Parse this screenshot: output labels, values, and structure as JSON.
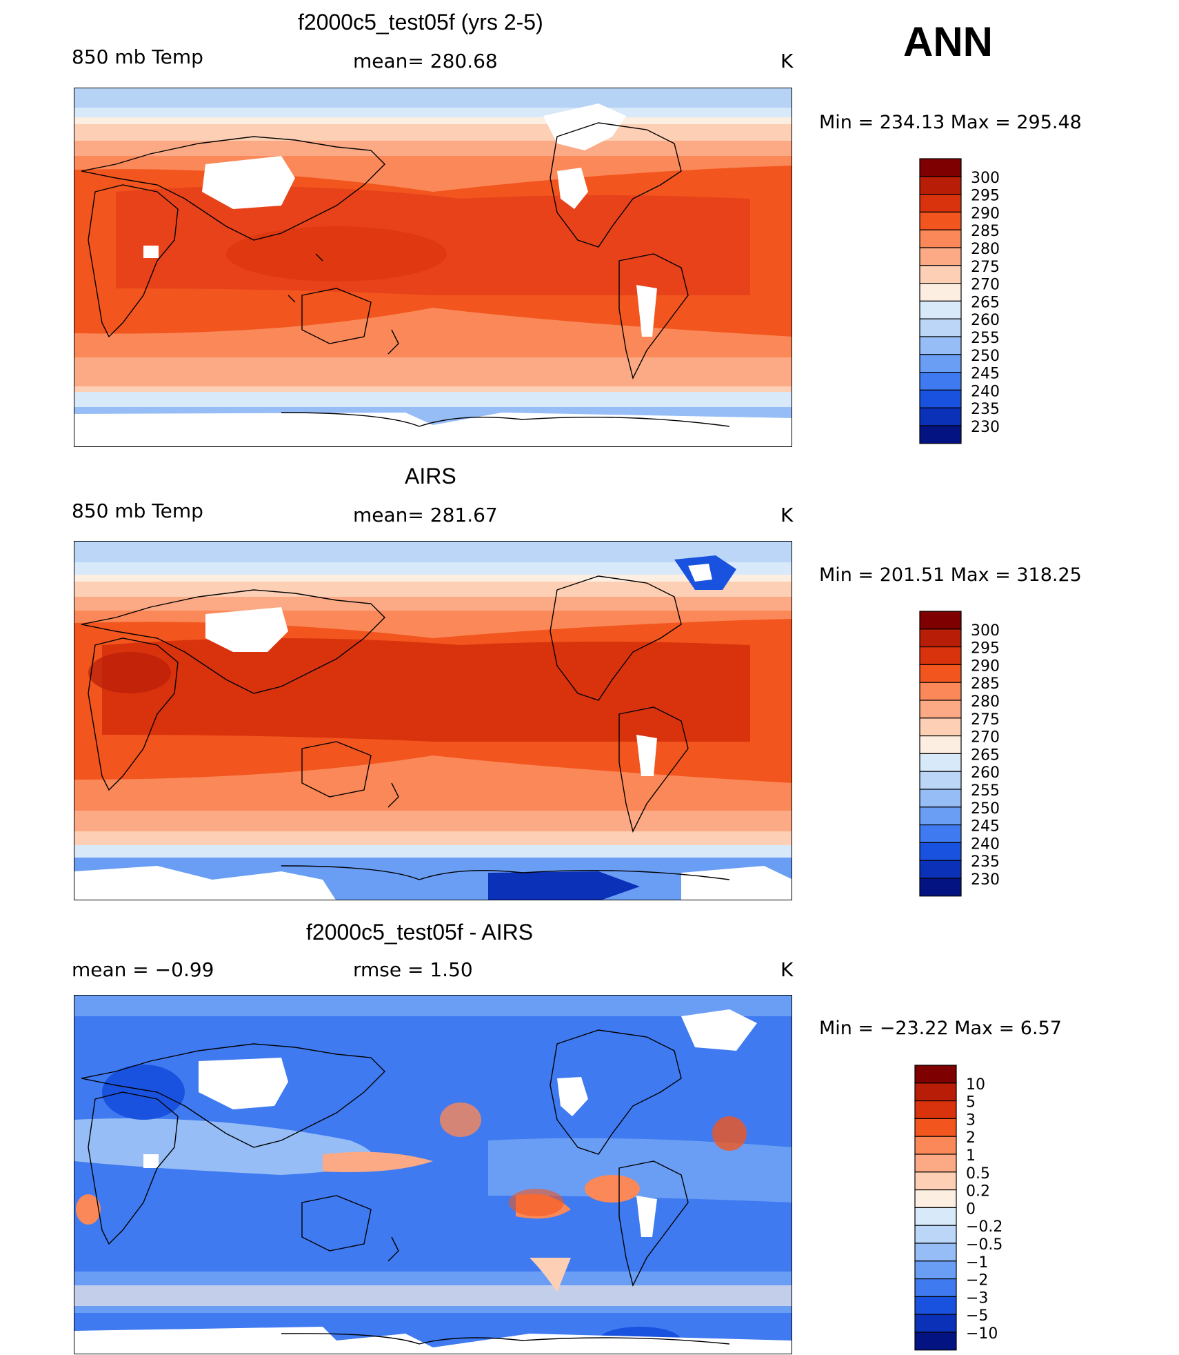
{
  "season": "ANN",
  "units_label": "K",
  "panels": [
    {
      "id": "model",
      "title": "f2000c5_test05f (yrs 2-5)",
      "variable": "850 mb Temp",
      "center_label": "mean=  280.68",
      "minmax": "Min  =  234.13  Max  =  295.48",
      "colorbar": {
        "colors": [
          "#7f0000",
          "#b81d08",
          "#d9330d",
          "#f2561e",
          "#fa8858",
          "#fbaa85",
          "#fdd0b5",
          "#fdeee2",
          "#d8e9fa",
          "#bcd6f7",
          "#96bdf6",
          "#6a9ef5",
          "#3f7af0",
          "#1a52e0",
          "#0b31b8",
          "#031482"
        ],
        "labels": [
          "300",
          "295",
          "290",
          "285",
          "280",
          "275",
          "270",
          "265",
          "260",
          "255",
          "250",
          "245",
          "240",
          "235",
          "230"
        ]
      }
    },
    {
      "id": "obs",
      "title": "AIRS",
      "variable": "850 mb Temp",
      "center_label": "mean=  281.67",
      "minmax": "Min  =  201.51  Max  =  318.25",
      "colorbar": {
        "colors": [
          "#7f0000",
          "#b81d08",
          "#d9330d",
          "#f2561e",
          "#fa8858",
          "#fbaa85",
          "#fdd0b5",
          "#fdeee2",
          "#d8e9fa",
          "#bcd6f7",
          "#96bdf6",
          "#6a9ef5",
          "#3f7af0",
          "#1a52e0",
          "#0b31b8",
          "#031482"
        ],
        "labels": [
          "300",
          "295",
          "290",
          "285",
          "280",
          "275",
          "270",
          "265",
          "260",
          "255",
          "250",
          "245",
          "240",
          "235",
          "230"
        ]
      }
    },
    {
      "id": "diff",
      "title": "f2000c5_test05f - AIRS",
      "variable": "mean  =    −0.99",
      "center_label": "rmse  =     1.50",
      "minmax": "Min  =  −23.22  Max  =       6.57",
      "colorbar": {
        "colors": [
          "#7f0000",
          "#b81d08",
          "#d9330d",
          "#f2561e",
          "#fa8858",
          "#fbaa85",
          "#fdd0b5",
          "#fdeee2",
          "#d8e9fa",
          "#bcd6f7",
          "#96bdf6",
          "#6a9ef5",
          "#3f7af0",
          "#1a52e0",
          "#0b31b8",
          "#031482"
        ],
        "labels": [
          "10",
          "5",
          "3",
          "2",
          "1",
          "0.5",
          "0.2",
          "0",
          "−0.2",
          "−0.5",
          "−1",
          "−2",
          "−3",
          "−5",
          "−10"
        ]
      }
    }
  ]
}
